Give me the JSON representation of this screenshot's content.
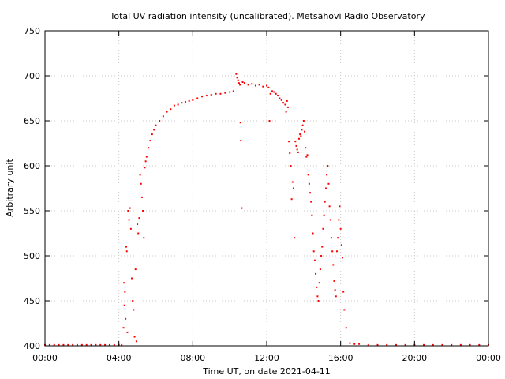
{
  "chart_data": {
    "type": "scatter",
    "title": "Total UV radiation intensity (uncalibrated). Metsähovi Radio Observatory",
    "xlabel": "Time UT, on date 2021-04-11",
    "ylabel": "Arbitrary unit",
    "xlim": [
      0,
      24
    ],
    "ylim": [
      400,
      750
    ],
    "x_ticks": [
      0,
      4,
      8,
      12,
      16,
      20,
      24
    ],
    "x_tick_labels": [
      "00:00",
      "04:00",
      "08:00",
      "12:00",
      "16:00",
      "20:00",
      "00:00"
    ],
    "y_ticks": [
      400,
      450,
      500,
      550,
      600,
      650,
      700,
      750
    ],
    "grid": true,
    "point_color": "#ff0000",
    "series": [
      {
        "x": [
          0.0,
          0.25,
          0.5,
          0.75,
          1.0,
          1.25,
          1.5,
          1.75,
          2.0,
          2.25,
          2.5,
          2.75,
          3.0,
          3.25,
          3.5,
          3.75,
          4.0,
          4.15,
          4.25,
          4.28,
          4.3,
          4.33,
          4.36,
          4.4,
          4.43,
          4.46,
          4.5,
          4.55,
          4.6,
          4.65,
          4.7,
          4.75,
          4.8,
          4.85,
          4.9,
          4.95,
          5.0,
          5.05,
          5.1,
          5.15,
          5.2,
          5.25,
          5.3,
          5.35,
          5.4,
          5.45,
          5.5,
          5.6,
          5.7,
          5.8,
          5.9,
          6.0,
          6.2,
          6.4,
          6.6,
          6.8,
          7.0,
          7.2,
          7.4,
          7.6,
          7.8,
          8.0,
          8.25,
          8.5,
          8.75,
          9.0,
          9.25,
          9.5,
          9.75,
          10.0,
          10.2,
          10.35,
          10.4,
          10.45,
          10.5,
          10.55,
          10.58,
          10.6,
          10.65,
          10.7,
          10.8,
          11.0,
          11.2,
          11.4,
          11.6,
          11.8,
          12.0,
          12.1,
          12.15,
          12.2,
          12.3,
          12.4,
          12.5,
          12.6,
          12.7,
          12.8,
          12.9,
          13.0,
          13.05,
          13.1,
          13.15,
          13.2,
          13.25,
          13.3,
          13.35,
          13.4,
          13.45,
          13.5,
          13.55,
          13.6,
          13.65,
          13.7,
          13.75,
          13.8,
          13.85,
          13.9,
          13.95,
          14.0,
          14.05,
          14.1,
          14.15,
          14.2,
          14.25,
          14.3,
          14.35,
          14.4,
          14.45,
          14.5,
          14.55,
          14.6,
          14.65,
          14.7,
          14.75,
          14.8,
          14.85,
          14.9,
          14.95,
          15.0,
          15.05,
          15.1,
          15.15,
          15.2,
          15.25,
          15.3,
          15.35,
          15.4,
          15.45,
          15.5,
          15.55,
          15.6,
          15.65,
          15.7,
          15.75,
          15.8,
          15.85,
          15.9,
          15.95,
          16.0,
          16.05,
          16.1,
          16.15,
          16.2,
          16.3,
          16.5,
          16.75,
          17.0,
          17.5,
          18.0,
          18.5,
          19.0,
          19.5,
          20.0,
          20.5,
          21.0,
          21.5,
          22.0,
          22.5,
          23.0,
          23.5,
          24.0
        ],
        "y": [
          401,
          401,
          401,
          401,
          401,
          401,
          401,
          401,
          401,
          401,
          401,
          401,
          401,
          401,
          401,
          401,
          401,
          401,
          420,
          470,
          445,
          460,
          430,
          510,
          505,
          415,
          550,
          540,
          553,
          530,
          475,
          450,
          440,
          410,
          485,
          405,
          535,
          525,
          542,
          590,
          580,
          565,
          550,
          520,
          598,
          605,
          610,
          620,
          628,
          635,
          640,
          645,
          650,
          655,
          660,
          663,
          667,
          668,
          670,
          671,
          672,
          673,
          675,
          677,
          678,
          679,
          680,
          680,
          681,
          682,
          683,
          702,
          698,
          695,
          692,
          690,
          648,
          628,
          553,
          693,
          692,
          690,
          691,
          689,
          690,
          688,
          689,
          687,
          650,
          680,
          683,
          682,
          680,
          678,
          675,
          673,
          670,
          668,
          660,
          672,
          665,
          627,
          614,
          600,
          563,
          582,
          575,
          520,
          627,
          622,
          618,
          615,
          630,
          635,
          633,
          640,
          645,
          650,
          638,
          620,
          610,
          612,
          590,
          580,
          570,
          560,
          545,
          525,
          505,
          495,
          480,
          465,
          455,
          450,
          470,
          485,
          500,
          510,
          530,
          545,
          560,
          575,
          590,
          600,
          580,
          555,
          540,
          520,
          505,
          490,
          472,
          462,
          455,
          505,
          520,
          540,
          555,
          530,
          512,
          498,
          460,
          440,
          420,
          403,
          402,
          402,
          401,
          401,
          401,
          401,
          401,
          401,
          401,
          401,
          401,
          401,
          401,
          401,
          401,
          401
        ]
      }
    ]
  }
}
